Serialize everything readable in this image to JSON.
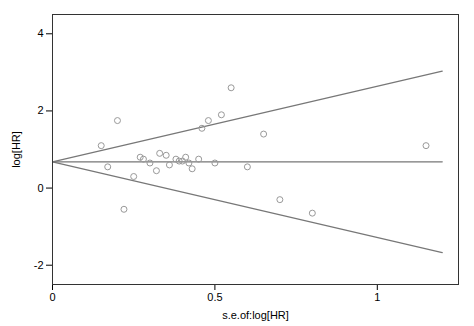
{
  "chart_data": {
    "type": "scatter",
    "xlabel": "s.e.of:log[HR]",
    "ylabel": "log[HR]",
    "xlim": [
      0,
      1.25
    ],
    "ylim": [
      -2.5,
      4.5
    ],
    "xticks": [
      0,
      0.5,
      1
    ],
    "yticks": [
      -2,
      0,
      2,
      4
    ],
    "grid": false,
    "series": [
      {
        "type": "line",
        "color": "#777777",
        "line_style": "solid",
        "x": [
          0,
          1.2
        ],
        "values": [
          0.68,
          3.032
        ]
      },
      {
        "type": "line",
        "color": "#777777",
        "line_style": "solid",
        "x": [
          0,
          1.2
        ],
        "values": [
          0.68,
          -1.672
        ]
      },
      {
        "type": "line",
        "color": "#777777",
        "line_style": "solid",
        "x": [
          0,
          1.2
        ],
        "values": [
          0.68,
          0.68
        ]
      },
      {
        "type": "scatter",
        "color": "#999999",
        "marker": "open_circle",
        "x": [
          0.15,
          0.17,
          0.2,
          0.22,
          0.25,
          0.27,
          0.28,
          0.3,
          0.32,
          0.33,
          0.35,
          0.36,
          0.38,
          0.39,
          0.4,
          0.41,
          0.42,
          0.43,
          0.45,
          0.46,
          0.48,
          0.5,
          0.52,
          0.55,
          0.6,
          0.65,
          0.7,
          0.8,
          1.15
        ],
        "values": [
          1.1,
          0.55,
          1.75,
          -0.55,
          0.3,
          0.8,
          0.75,
          0.65,
          0.45,
          0.9,
          0.85,
          0.6,
          0.75,
          0.7,
          0.7,
          0.8,
          0.65,
          0.5,
          0.75,
          1.55,
          1.75,
          0.65,
          1.9,
          2.6,
          0.55,
          1.4,
          -0.3,
          -0.65,
          1.1
        ]
      }
    ]
  }
}
